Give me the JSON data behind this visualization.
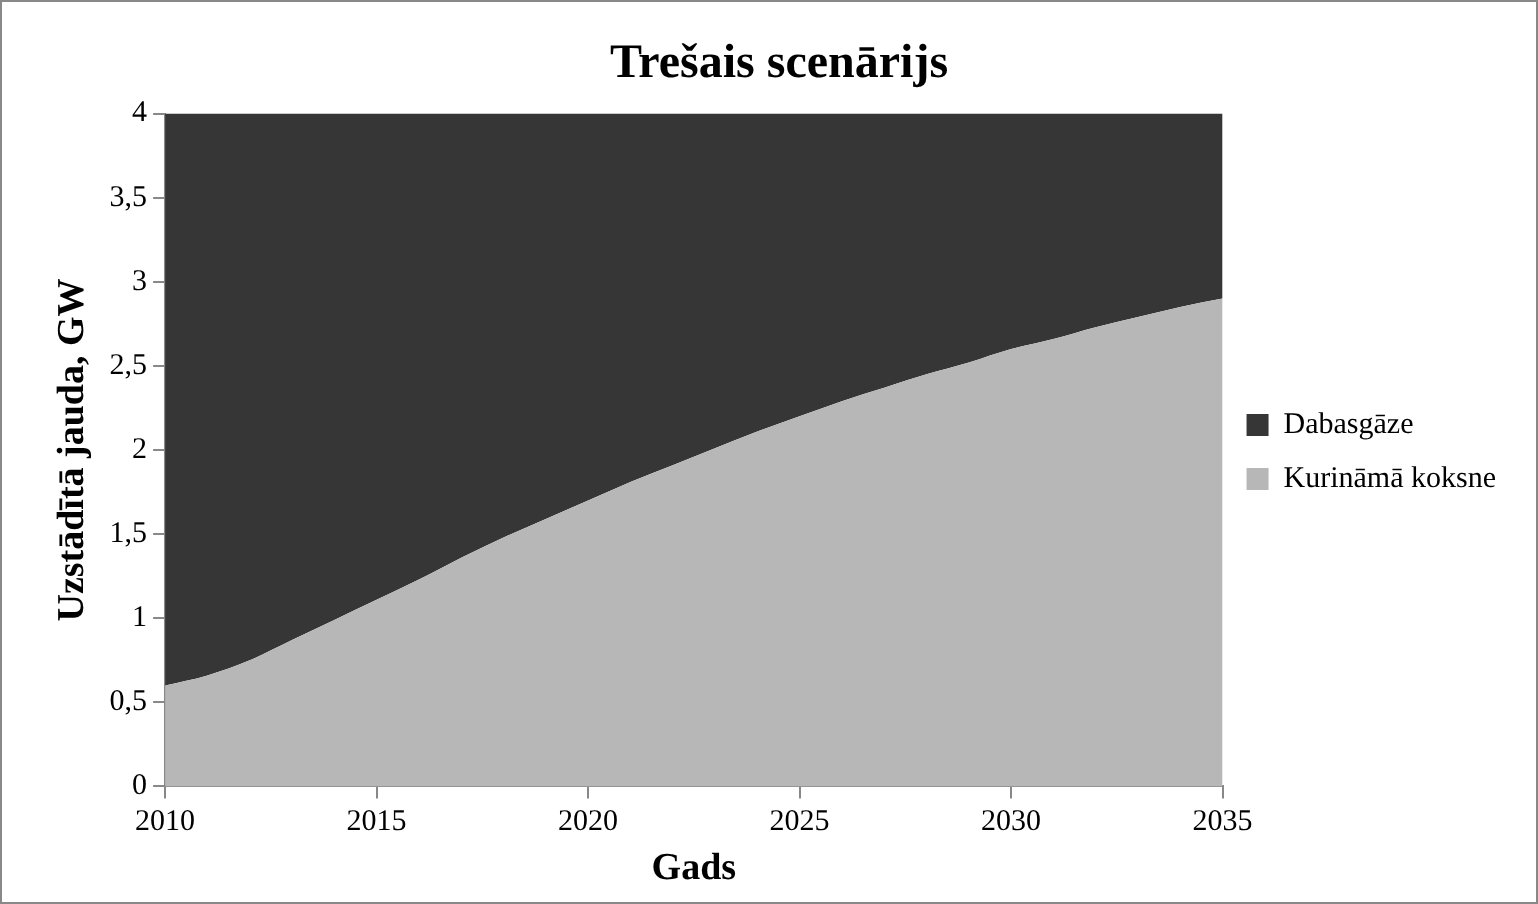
{
  "chart_data": {
    "type": "area",
    "title": "Trešais scenārijs",
    "xlabel": "Gads",
    "ylabel": "Uzstādītā jauda, GW",
    "x": [
      2010,
      2011,
      2012,
      2013,
      2014,
      2015,
      2016,
      2017,
      2018,
      2019,
      2020,
      2021,
      2022,
      2023,
      2024,
      2025,
      2026,
      2027,
      2028,
      2029,
      2030,
      2031,
      2032,
      2033,
      2034,
      2035
    ],
    "series": [
      {
        "name": "Kurināmā koksne",
        "color": "#b7b7b7",
        "values": [
          0.6,
          0.66,
          0.75,
          0.87,
          0.99,
          1.11,
          1.23,
          1.36,
          1.48,
          1.59,
          1.7,
          1.81,
          1.91,
          2.01,
          2.11,
          2.2,
          2.29,
          2.37,
          2.45,
          2.52,
          2.6,
          2.66,
          2.73,
          2.79,
          2.85,
          2.9
        ]
      },
      {
        "name": "Dabasgāze",
        "color": "#363636",
        "values": [
          3.4,
          3.34,
          3.25,
          3.13,
          3.01,
          2.89,
          2.77,
          2.64,
          2.52,
          2.41,
          2.3,
          2.19,
          2.09,
          1.99,
          1.89,
          1.8,
          1.71,
          1.63,
          1.55,
          1.48,
          1.4,
          1.34,
          1.27,
          1.21,
          1.15,
          1.1
        ]
      }
    ],
    "stacked": true,
    "xlim": [
      2010,
      2035
    ],
    "xticks": [
      2010,
      2015,
      2020,
      2025,
      2030,
      2035
    ],
    "ylim": [
      0,
      4
    ],
    "yticks": [
      0,
      {
        "value": 0.5,
        "label": "0,5"
      },
      1,
      {
        "value": 1.5,
        "label": "1,5"
      },
      2,
      {
        "value": 2.5,
        "label": "2,5"
      },
      3,
      {
        "value": 3.5,
        "label": "3,5"
      },
      4
    ],
    "grid": false,
    "legend": "right"
  }
}
